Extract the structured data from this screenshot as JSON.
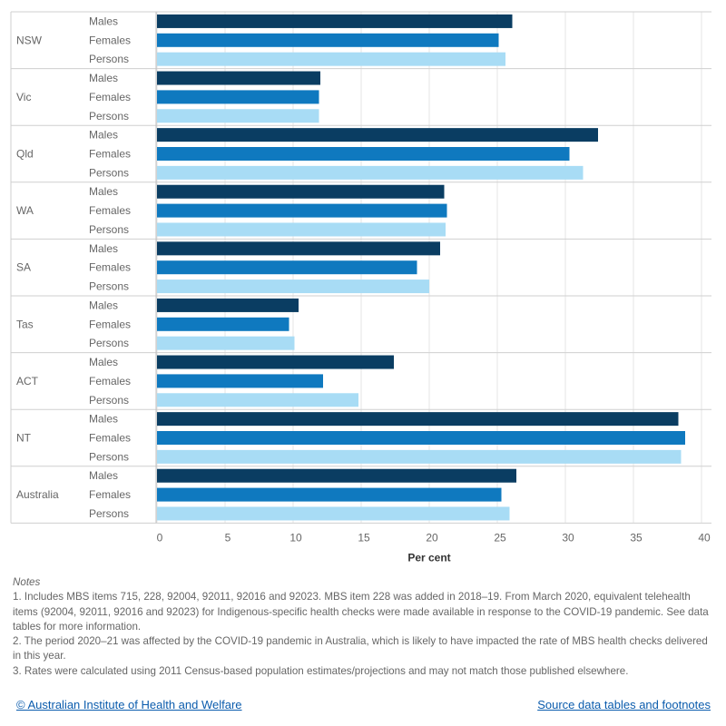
{
  "chart_data": {
    "type": "bar",
    "orientation": "horizontal",
    "xlabel": "Per cent",
    "xlim": [
      0,
      40
    ],
    "xticks": [
      0,
      5,
      10,
      15,
      20,
      25,
      30,
      35,
      40
    ],
    "grid": true,
    "groups": [
      "NSW",
      "Vic",
      "Qld",
      "WA",
      "SA",
      "Tas",
      "ACT",
      "NT",
      "Australia"
    ],
    "subcategories": [
      "Males",
      "Females",
      "Persons"
    ],
    "colors": {
      "Males": "#0a3d62",
      "Females": "#0f79bf",
      "Persons": "#a8dcf5"
    },
    "values": [
      [
        26.1,
        25.1,
        25.6
      ],
      [
        12.0,
        11.9,
        11.9
      ],
      [
        32.4,
        30.3,
        31.3
      ],
      [
        21.1,
        21.3,
        21.2
      ],
      [
        20.8,
        19.1,
        20.0
      ],
      [
        10.4,
        9.7,
        10.1
      ],
      [
        17.4,
        12.2,
        14.8
      ],
      [
        38.3,
        38.8,
        38.5
      ],
      [
        26.4,
        25.3,
        25.9
      ]
    ]
  },
  "notes": {
    "title": "Notes",
    "items": [
      "1. Includes MBS items 715, 228, 92004, 92011, 92016 and 92023. MBS item 228 was added in 2018–19. From March 2020, equivalent telehealth items (92004, 92011, 92016 and 92023) for Indigenous-specific health checks were made available in response to the COVID-19 pandemic. See data tables for more information.",
      "2. The period 2020–21 was affected by the COVID-19 pandemic in Australia, which is likely to have impacted the rate of MBS health checks delivered in this year.",
      "3. Rates were calculated using 2011 Census-based population estimates/projections and may not match those published elsewhere."
    ]
  },
  "footer": {
    "left_link": "© Australian Institute of Health and Welfare",
    "right_link": "Source data tables and footnotes"
  }
}
